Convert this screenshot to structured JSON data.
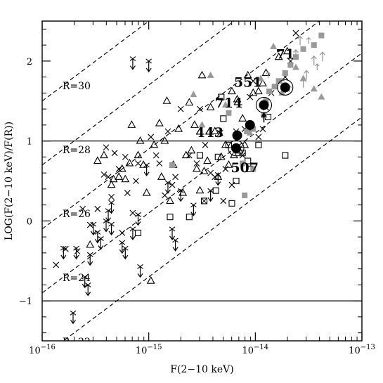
{
  "chart_data": {
    "type": "scatter",
    "title": "",
    "xlabel": "F(2−10 keV)",
    "ylabel": "LOG(F(2−10 keV)/F(R))",
    "xscale": "log",
    "xlim_log10": [
      -16,
      -13
    ],
    "ylim": [
      -1.5,
      2.5
    ],
    "x_tick_labels": [
      {
        "base": "10",
        "exp": "−16"
      },
      {
        "base": "10",
        "exp": "−15"
      },
      {
        "base": "10",
        "exp": "−14"
      },
      {
        "base": "10",
        "exp": "−13"
      }
    ],
    "y_ticks": [
      -1,
      0,
      1,
      2
    ],
    "y_tick_labels": [
      "−1",
      "0",
      "1",
      "2"
    ],
    "horizontal_lines": [
      1,
      -1
    ],
    "r_lines": [
      {
        "label": "R=30",
        "R": 30
      },
      {
        "label": "R=28",
        "R": 28
      },
      {
        "label": "R=26",
        "R": 26
      },
      {
        "label": "R=24",
        "R": 24
      },
      {
        "label": "R=22",
        "R": 22
      }
    ],
    "colors": {
      "axes": "#000000",
      "gray": "#999999",
      "filled": "#000000"
    },
    "series": [
      {
        "marker": "cross",
        "points": [
          [
            -15.87,
            -0.55
          ],
          [
            -15.78,
            -0.35
          ],
          [
            -15.67,
            -0.38
          ],
          [
            -15.62,
            0.15
          ],
          [
            -15.55,
            -0.05
          ],
          [
            -15.48,
            0.15
          ],
          [
            -15.42,
            0.58
          ],
          [
            -15.4,
            0.92
          ],
          [
            -15.38,
            0.55
          ],
          [
            -15.35,
            0.3
          ],
          [
            -15.32,
            0.85
          ],
          [
            -15.28,
            0.65
          ],
          [
            -15.25,
            -0.15
          ],
          [
            -15.22,
            0.8
          ],
          [
            -15.2,
            0.35
          ],
          [
            -15.15,
            0.1
          ],
          [
            -15.12,
            0.5
          ],
          [
            -15.1,
            0.72
          ],
          [
            -14.98,
            1.05
          ],
          [
            -14.93,
            0.82
          ],
          [
            -14.9,
            0.72
          ],
          [
            -14.85,
            0.32
          ],
          [
            -14.82,
            1.12
          ],
          [
            -14.78,
            0.45
          ],
          [
            -14.75,
            0.55
          ],
          [
            -14.7,
            1.4
          ],
          [
            -14.62,
            0.82
          ],
          [
            -14.55,
            0.72
          ],
          [
            -14.52,
            1.4
          ],
          [
            -14.47,
            0.95
          ],
          [
            -14.42,
            0.6
          ],
          [
            -14.38,
            0.55
          ],
          [
            -14.33,
            1.1
          ],
          [
            -14.3,
            0.25
          ],
          [
            -14.28,
            0.65
          ],
          [
            -14.22,
            0.45
          ],
          [
            -14.18,
            1.12
          ],
          [
            -14.12,
            0.82
          ],
          [
            -14.1,
            1.15
          ],
          [
            -14.05,
            1.55
          ],
          [
            -14.02,
            1.75
          ],
          [
            -13.97,
            1.05
          ],
          [
            -13.93,
            1.15
          ],
          [
            -13.9,
            1.42
          ],
          [
            -13.85,
            1.6
          ],
          [
            -13.72,
            1.8
          ],
          [
            -13.67,
            2.0
          ],
          [
            -13.62,
            2.35
          ]
        ]
      },
      {
        "marker": "triangle",
        "points": [
          [
            -15.42,
            0.82
          ],
          [
            -15.35,
            0.45
          ],
          [
            -15.28,
            0.55
          ],
          [
            -15.25,
            0.65
          ],
          [
            -15.22,
            0.52
          ],
          [
            -15.18,
            0.72
          ],
          [
            -15.16,
            1.2
          ],
          [
            -15.1,
            0.82
          ],
          [
            -15.08,
            1.0
          ],
          [
            -15.05,
            0.7
          ],
          [
            -15.02,
            0.35
          ],
          [
            -14.98,
            -0.75
          ],
          [
            -14.95,
            0.95
          ],
          [
            -14.9,
            1.22
          ],
          [
            -14.88,
            0.55
          ],
          [
            -14.85,
            1.0
          ],
          [
            -14.83,
            1.5
          ],
          [
            -14.8,
            0.25
          ],
          [
            -14.77,
            0.7
          ],
          [
            -14.72,
            1.15
          ],
          [
            -14.68,
            0.35
          ],
          [
            -14.65,
            0.82
          ],
          [
            -14.62,
            1.48
          ],
          [
            -14.6,
            0.88
          ],
          [
            -14.57,
            1.2
          ],
          [
            -14.55,
            0.65
          ],
          [
            -14.52,
            0.38
          ],
          [
            -14.5,
            1.82
          ],
          [
            -14.48,
            0.62
          ],
          [
            -14.45,
            0.75
          ],
          [
            -14.42,
            1.42
          ],
          [
            -14.38,
            1.12
          ],
          [
            -14.35,
            0.55
          ],
          [
            -14.32,
            0.8
          ],
          [
            -14.28,
            0.95
          ],
          [
            -14.25,
            0.7
          ],
          [
            -14.22,
            1.62
          ],
          [
            -14.2,
            0.82
          ],
          [
            -14.17,
            1.52
          ],
          [
            -14.15,
            0.88
          ],
          [
            -14.12,
            1.28
          ],
          [
            -14.1,
            0.95
          ],
          [
            -14.07,
            1.82
          ],
          [
            -14.02,
            1.6
          ],
          [
            -13.97,
            1.62
          ],
          [
            -13.93,
            1.72
          ],
          [
            -13.9,
            1.85
          ],
          [
            -13.78,
            2.05
          ],
          [
            -13.7,
            2.12
          ],
          [
            -15.55,
            -0.3
          ],
          [
            -15.48,
            0.75
          ],
          [
            -15.33,
            0.52
          ]
        ]
      },
      {
        "marker": "open-square",
        "points": [
          [
            -15.1,
            -0.15
          ],
          [
            -14.8,
            0.05
          ],
          [
            -14.62,
            0.05
          ],
          [
            -14.52,
            0.82
          ],
          [
            -14.37,
            0.38
          ],
          [
            -14.35,
            0.8
          ],
          [
            -14.32,
            1.55
          ],
          [
            -14.25,
            0.95
          ],
          [
            -14.22,
            0.22
          ],
          [
            -14.18,
            0.5
          ],
          [
            -14.12,
            0.85
          ],
          [
            -14.07,
            0.75
          ],
          [
            -14.05,
            0.65
          ],
          [
            -13.97,
            0.95
          ],
          [
            -13.88,
            1.3
          ],
          [
            -13.72,
            0.82
          ],
          [
            -14.3,
            1.28
          ]
        ]
      },
      {
        "marker": "gray-square",
        "points": [
          [
            -14.78,
            0.7
          ],
          [
            -14.25,
            1.35
          ],
          [
            -14.12,
            0.72
          ],
          [
            -14.08,
            1.12
          ],
          [
            -14.02,
            0.65
          ],
          [
            -14.02,
            1.15
          ],
          [
            -13.92,
            1.32
          ],
          [
            -13.9,
            1.5
          ],
          [
            -13.87,
            1.62
          ],
          [
            -13.82,
            1.68
          ],
          [
            -13.78,
            1.75
          ],
          [
            -13.72,
            1.85
          ],
          [
            -13.67,
            1.95
          ],
          [
            -13.62,
            2.05
          ],
          [
            -13.55,
            2.15
          ],
          [
            -13.45,
            2.2
          ],
          [
            -13.38,
            2.32
          ],
          [
            -14.1,
            0.32
          ]
        ]
      },
      {
        "marker": "gray-triangle",
        "points": [
          [
            -14.58,
            1.58
          ],
          [
            -14.42,
            1.82
          ],
          [
            -14.28,
            1.45
          ],
          [
            -14.05,
            1.1
          ],
          [
            -13.95,
            1.78
          ],
          [
            -13.75,
            1.6
          ],
          [
            -13.62,
            1.92
          ],
          [
            -13.55,
            1.78
          ],
          [
            -13.45,
            1.65
          ],
          [
            -13.38,
            1.55
          ],
          [
            -13.83,
            2.18
          ],
          [
            -14.5,
            1.2
          ]
        ]
      },
      {
        "marker": "gray-arrow-up",
        "points": [
          [
            -13.75,
            1.72
          ],
          [
            -13.62,
            2.08
          ],
          [
            -13.58,
            2.25
          ],
          [
            -13.52,
            1.82
          ],
          [
            -13.45,
            2.0
          ],
          [
            -13.37,
            2.05
          ],
          [
            -13.55,
            1.72
          ]
        ]
      },
      {
        "marker": "arrow-down",
        "points": [
          [
            -15.8,
            -0.42
          ],
          [
            -15.68,
            -0.42
          ],
          [
            -15.6,
            -0.78
          ],
          [
            -15.57,
            -0.88
          ],
          [
            -15.52,
            -0.12
          ],
          [
            -15.48,
            -0.22
          ],
          [
            -15.45,
            -0.3
          ],
          [
            -15.4,
            -0.08
          ],
          [
            -15.35,
            0.15
          ],
          [
            -15.25,
            -0.35
          ],
          [
            -15.22,
            -0.42
          ],
          [
            -15.15,
            -0.18
          ],
          [
            -15.1,
            0.0
          ],
          [
            -15.08,
            -0.65
          ],
          [
            -15.02,
            0.62
          ],
          [
            -15.0,
            1.92
          ],
          [
            -14.82,
            0.4
          ],
          [
            -14.78,
            -0.18
          ],
          [
            -14.75,
            -0.32
          ],
          [
            -14.7,
            0.3
          ],
          [
            -14.42,
            0.3
          ],
          [
            -14.35,
            0.5
          ],
          [
            -15.15,
            1.95
          ],
          [
            -14.58,
            0.12
          ],
          [
            -15.38,
            0.05
          ],
          [
            -15.55,
            -0.5
          ],
          [
            -15.35,
            -0.12
          ],
          [
            -15.71,
            -1.23
          ]
        ]
      },
      {
        "marker": "gray-arrow-small",
        "points": [
          [
            -13.88,
            1.82
          ],
          [
            -13.68,
            1.65
          ],
          [
            -13.5,
            2.25
          ],
          [
            -13.42,
            1.92
          ]
        ]
      },
      {
        "marker": "arrow-up-filled",
        "points": [
          [
            -14.18,
            1.02
          ],
          [
            -14.05,
            1.15
          ],
          [
            -13.92,
            1.25
          ],
          [
            -13.72,
            1.62
          ]
        ]
      },
      {
        "marker": "filled-circle",
        "points": [
          [
            -14.17,
            1.07
          ],
          [
            -14.05,
            1.2
          ],
          [
            -13.92,
            1.45
          ],
          [
            -13.72,
            1.67
          ],
          [
            -14.18,
            0.91
          ]
        ]
      },
      {
        "marker": "ring",
        "points": [
          [
            -14.18,
            0.91
          ],
          [
            -13.92,
            1.45
          ],
          [
            -13.72,
            1.67
          ]
        ]
      },
      {
        "marker": "boxed-cross",
        "points": [
          [
            -14.48,
            0.25
          ]
        ]
      }
    ],
    "labeled_sources": [
      {
        "label": "71",
        "x": -13.72,
        "y": 2.03
      },
      {
        "label": "551",
        "x": -14.07,
        "y": 1.68
      },
      {
        "label": "714",
        "x": -14.25,
        "y": 1.42
      },
      {
        "label": "443",
        "x": -14.43,
        "y": 1.05
      },
      {
        "label": "507",
        "x": -14.1,
        "y": 0.61
      }
    ]
  }
}
